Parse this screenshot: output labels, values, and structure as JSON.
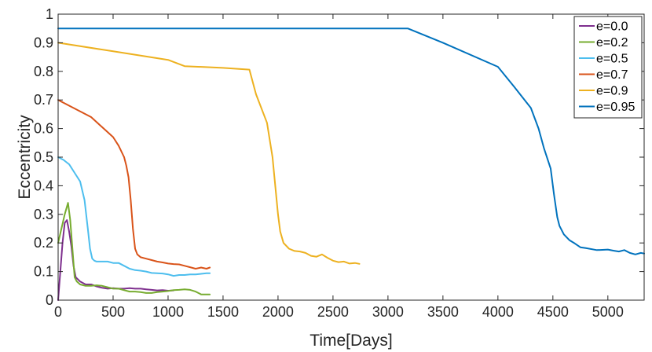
{
  "chart_data": {
    "type": "line",
    "title": "",
    "xlabel": "Time[Days]",
    "ylabel": "Eccentricity",
    "xlim": [
      0,
      5330
    ],
    "ylim": [
      0,
      1
    ],
    "xticks": [
      0,
      500,
      1000,
      1500,
      2000,
      2500,
      3000,
      3500,
      4000,
      4500,
      5000
    ],
    "yticks": [
      0,
      0.1,
      0.2,
      0.3,
      0.4,
      0.5,
      0.6,
      0.7,
      0.8,
      0.9,
      1
    ],
    "ytick_labels": [
      "0",
      "0.1",
      "0.2",
      "0.3",
      "0.4",
      "0.5",
      "0.6",
      "0.7",
      "0.8",
      "0.9",
      "1"
    ],
    "grid": false,
    "legend_position": "top-right",
    "series": [
      {
        "name": "e=0.0",
        "color": "#7E2F8E",
        "x": [
          0,
          20,
          40,
          60,
          80,
          100,
          120,
          140,
          160,
          200,
          250,
          300,
          350,
          400,
          450,
          500,
          550,
          600,
          650,
          700,
          750,
          800,
          850,
          900,
          950,
          1000,
          1050
        ],
        "y": [
          0,
          0.1,
          0.2,
          0.27,
          0.28,
          0.24,
          0.19,
          0.12,
          0.08,
          0.065,
          0.055,
          0.055,
          0.048,
          0.043,
          0.04,
          0.042,
          0.04,
          0.04,
          0.042,
          0.04,
          0.04,
          0.038,
          0.036,
          0.034,
          0.035,
          0.033,
          0.034
        ]
      },
      {
        "name": "e=0.2",
        "color": "#77AC30",
        "x": [
          0,
          30,
          60,
          90,
          110,
          130,
          150,
          170,
          200,
          250,
          300,
          350,
          400,
          450,
          500,
          550,
          600,
          650,
          700,
          750,
          800,
          850,
          900,
          950,
          1000,
          1050,
          1100,
          1150,
          1200,
          1250,
          1300,
          1350,
          1380
        ],
        "y": [
          0.2,
          0.25,
          0.3,
          0.34,
          0.28,
          0.18,
          0.08,
          0.065,
          0.055,
          0.05,
          0.05,
          0.052,
          0.05,
          0.045,
          0.04,
          0.04,
          0.035,
          0.03,
          0.03,
          0.028,
          0.025,
          0.025,
          0.028,
          0.03,
          0.032,
          0.035,
          0.036,
          0.038,
          0.036,
          0.03,
          0.02,
          0.02,
          0.02
        ]
      },
      {
        "name": "e=0.5",
        "color": "#4DBEEE",
        "x": [
          0,
          50,
          100,
          150,
          200,
          240,
          270,
          290,
          310,
          330,
          350,
          400,
          450,
          500,
          550,
          600,
          650,
          700,
          750,
          800,
          850,
          900,
          950,
          1000,
          1050,
          1100,
          1150,
          1200,
          1250,
          1300,
          1350,
          1380
        ],
        "y": [
          0.5,
          0.49,
          0.475,
          0.445,
          0.415,
          0.35,
          0.25,
          0.18,
          0.145,
          0.138,
          0.135,
          0.135,
          0.135,
          0.13,
          0.13,
          0.12,
          0.11,
          0.105,
          0.103,
          0.1,
          0.095,
          0.094,
          0.093,
          0.09,
          0.085,
          0.088,
          0.088,
          0.09,
          0.09,
          0.092,
          0.094,
          0.094
        ]
      },
      {
        "name": "e=0.7",
        "color": "#D95319",
        "x": [
          0,
          100,
          200,
          300,
          400,
          500,
          550,
          600,
          620,
          640,
          660,
          680,
          700,
          720,
          750,
          800,
          850,
          900,
          950,
          1000,
          1050,
          1100,
          1150,
          1200,
          1250,
          1300,
          1350,
          1380
        ],
        "y": [
          0.7,
          0.68,
          0.66,
          0.64,
          0.605,
          0.57,
          0.54,
          0.5,
          0.47,
          0.43,
          0.35,
          0.25,
          0.18,
          0.16,
          0.15,
          0.145,
          0.14,
          0.135,
          0.132,
          0.128,
          0.126,
          0.125,
          0.12,
          0.115,
          0.11,
          0.114,
          0.11,
          0.114
        ]
      },
      {
        "name": "e=0.9",
        "color": "#EDB120",
        "x": [
          0,
          500,
          1000,
          1150,
          1500,
          1740,
          1800,
          1900,
          1950,
          1980,
          2000,
          2020,
          2050,
          2100,
          2150,
          2200,
          2250,
          2300,
          2350,
          2400,
          2450,
          2500,
          2550,
          2600,
          2650,
          2700,
          2740
        ],
        "y": [
          0.9,
          0.87,
          0.84,
          0.818,
          0.812,
          0.806,
          0.72,
          0.62,
          0.5,
          0.38,
          0.3,
          0.24,
          0.2,
          0.18,
          0.172,
          0.17,
          0.165,
          0.155,
          0.152,
          0.16,
          0.148,
          0.138,
          0.133,
          0.135,
          0.128,
          0.13,
          0.127
        ]
      },
      {
        "name": "e=0.95",
        "color": "#0072BD",
        "x": [
          0,
          3180,
          3500,
          4000,
          4150,
          4300,
          4370,
          4420,
          4480,
          4510,
          4540,
          4560,
          4600,
          4650,
          4700,
          4750,
          4800,
          4900,
          5000,
          5050,
          5100,
          5150,
          5200,
          5250,
          5300,
          5330
        ],
        "y": [
          0.95,
          0.95,
          0.9,
          0.816,
          0.745,
          0.672,
          0.6,
          0.53,
          0.46,
          0.37,
          0.29,
          0.26,
          0.23,
          0.21,
          0.198,
          0.185,
          0.182,
          0.175,
          0.177,
          0.173,
          0.17,
          0.175,
          0.165,
          0.16,
          0.165,
          0.163
        ]
      }
    ]
  }
}
